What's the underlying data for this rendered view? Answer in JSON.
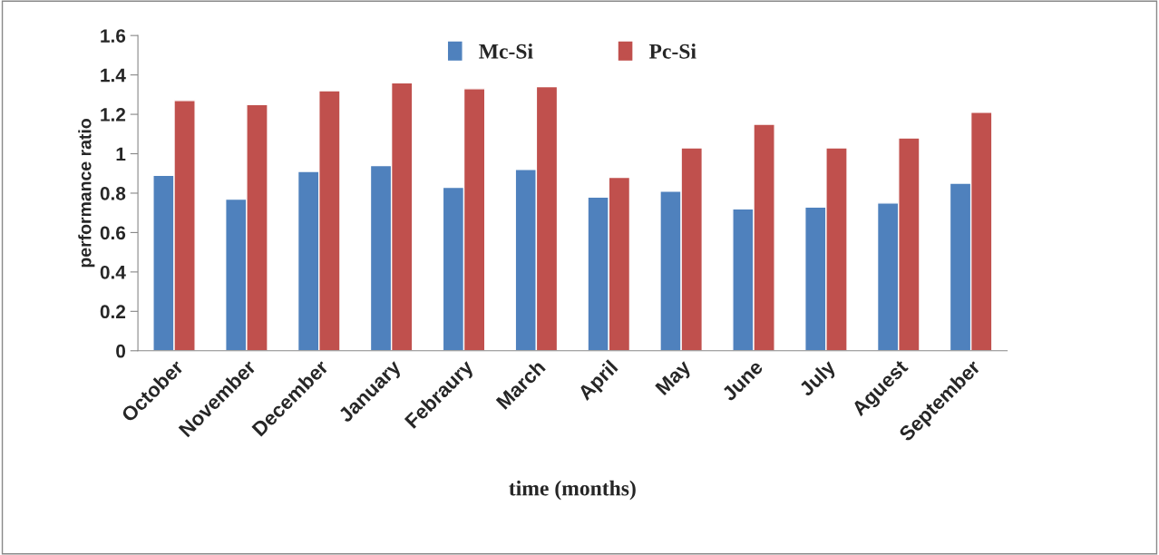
{
  "chart_data": {
    "type": "bar",
    "xlabel": "time (months)",
    "ylabel": "performance ratio",
    "categories": [
      "October",
      "November",
      "December",
      "January",
      "Febraury",
      "March",
      "April",
      "May",
      "June",
      "July",
      "Aguest",
      "September"
    ],
    "series": [
      {
        "name": "Mc-Si",
        "color": "#4f81bd",
        "values": [
          0.89,
          0.77,
          0.91,
          0.94,
          0.83,
          0.92,
          0.78,
          0.81,
          0.72,
          0.73,
          0.75,
          0.85
        ]
      },
      {
        "name": "Pc-Si",
        "color": "#c0504d",
        "values": [
          1.27,
          1.25,
          1.32,
          1.36,
          1.33,
          1.34,
          0.88,
          1.03,
          1.15,
          1.03,
          1.08,
          1.21
        ]
      }
    ],
    "ylim": [
      0,
      1.6
    ],
    "yticks": [
      0,
      0.2,
      0.4,
      0.6,
      0.8,
      1,
      1.2,
      1.4,
      1.6
    ],
    "grid": false,
    "legend": "top"
  }
}
